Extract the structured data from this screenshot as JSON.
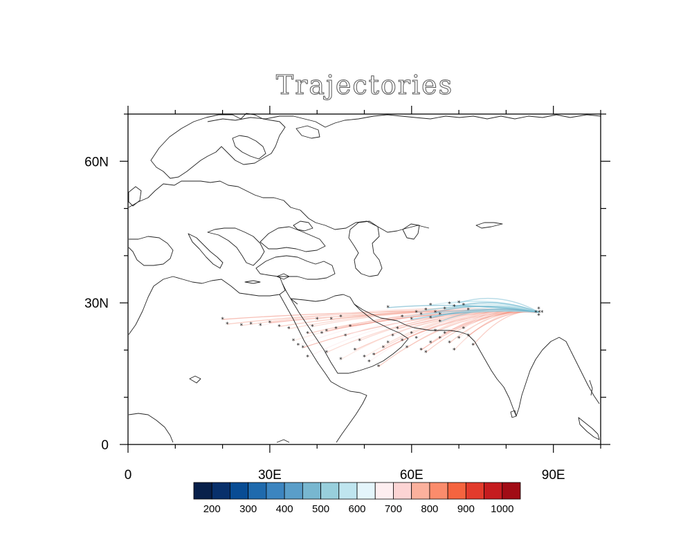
{
  "title": "Trajectories",
  "map": {
    "lon_range": [
      0,
      100
    ],
    "lat_range": [
      0,
      70
    ],
    "lon_ticks": [
      {
        "value": 0,
        "label": "0"
      },
      {
        "value": 30,
        "label": "30E"
      },
      {
        "value": 60,
        "label": "60E"
      },
      {
        "value": 90,
        "label": "90E"
      }
    ],
    "lat_ticks": [
      {
        "value": 0,
        "label": "0"
      },
      {
        "value": 30,
        "label": "30N"
      },
      {
        "value": 60,
        "label": "60N"
      }
    ],
    "minor_lon_ticks": [
      10,
      20,
      40,
      50,
      70,
      80,
      100
    ],
    "minor_lat_ticks": [
      10,
      20,
      40,
      50,
      70
    ]
  },
  "colorbar": {
    "colors": [
      "#08204a",
      "#08306b",
      "#084c94",
      "#1f6aad",
      "#3c85c0",
      "#5a9ec9",
      "#78b7d0",
      "#98cfdc",
      "#bfe5ef",
      "#e4f5fb",
      "#fdeef0",
      "#fcd4d4",
      "#fbb19d",
      "#fb8c6c",
      "#f5643f",
      "#e23b2c",
      "#c51c1f",
      "#a10c15"
    ],
    "labels": [
      "200",
      "300",
      "400",
      "500",
      "600",
      "700",
      "800",
      "900",
      "1000"
    ]
  },
  "trajectories": {
    "release_point": {
      "lon": 87,
      "lat": 28
    },
    "release_markers": [
      [
        86.3,
        28.0
      ],
      [
        87.0,
        28.0
      ],
      [
        87.6,
        28.0
      ],
      [
        86.9,
        28.7
      ],
      [
        86.9,
        27.3
      ]
    ],
    "blue_endpoints": [
      [
        60,
        26.5
      ],
      [
        62,
        27.5
      ],
      [
        63,
        28.5
      ],
      [
        64,
        29.5
      ],
      [
        65,
        28
      ],
      [
        66,
        27.5
      ],
      [
        67,
        28.7
      ],
      [
        68,
        29.8
      ],
      [
        69,
        29.2
      ],
      [
        70,
        30
      ],
      [
        71,
        29.5
      ],
      [
        72,
        28.5
      ],
      [
        64,
        26.8
      ],
      [
        66,
        26
      ],
      [
        61,
        28
      ],
      [
        58,
        27
      ],
      [
        55,
        29
      ]
    ],
    "red_endpoints": [
      [
        20,
        26.5
      ],
      [
        21,
        25.5
      ],
      [
        24,
        25.2
      ],
      [
        26,
        25.5
      ],
      [
        28,
        25.2
      ],
      [
        30,
        25.8
      ],
      [
        32,
        25
      ],
      [
        34,
        24.5
      ],
      [
        35,
        22
      ],
      [
        36,
        21
      ],
      [
        37,
        20.5
      ],
      [
        38,
        23.5
      ],
      [
        39,
        25
      ],
      [
        40,
        26.5
      ],
      [
        41,
        23.5
      ],
      [
        42,
        24
      ],
      [
        43,
        26.5
      ],
      [
        44,
        24.5
      ],
      [
        45,
        27
      ],
      [
        46,
        23
      ],
      [
        47,
        25
      ],
      [
        48,
        20
      ],
      [
        49,
        22
      ],
      [
        50,
        18.5
      ],
      [
        51,
        17.5
      ],
      [
        52,
        19
      ],
      [
        53,
        16.5
      ],
      [
        54,
        20.5
      ],
      [
        55,
        21.5
      ],
      [
        56,
        23
      ],
      [
        57,
        24.5
      ],
      [
        58,
        22
      ],
      [
        59,
        20.5
      ],
      [
        60,
        23.5
      ],
      [
        61,
        22.5
      ],
      [
        62,
        20
      ],
      [
        63,
        19.5
      ],
      [
        64,
        21.5
      ],
      [
        65,
        24
      ],
      [
        66,
        22.5
      ],
      [
        67,
        23.5
      ],
      [
        68,
        21.5
      ],
      [
        69,
        20
      ],
      [
        70,
        22.5
      ],
      [
        71,
        24.5
      ],
      [
        72,
        23
      ],
      [
        73,
        21
      ],
      [
        42,
        19.5
      ],
      [
        45,
        18
      ],
      [
        38,
        18.5
      ]
    ]
  }
}
